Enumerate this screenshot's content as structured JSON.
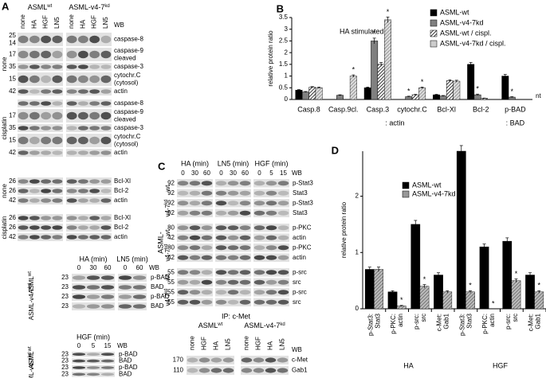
{
  "panel_a": {
    "label": "A",
    "groups": [
      {
        "text": "ASML",
        "sup": "wt"
      },
      {
        "text": "ASML-v4-7",
        "sup": "kd"
      }
    ],
    "lanes": [
      "none",
      "HA",
      "HGF",
      "LN5",
      "none",
      "HA",
      "HGF",
      "LN5"
    ],
    "wb": "WB",
    "sections": [
      {
        "label": "none",
        "rows": [
          {
            "mw": [
              25,
              14
            ],
            "name": [
              "caspase-8"
            ]
          },
          {
            "mw": [
              17
            ],
            "name": [
              "caspase-9",
              "cleaved"
            ]
          },
          {
            "mw": [
              35
            ],
            "name": [
              "caspase-3"
            ]
          },
          {
            "mw": [
              15
            ],
            "name": [
              "cytochr.C",
              "(cytosol)"
            ]
          },
          {
            "mw": [
              42
            ],
            "name": [
              "actin"
            ]
          }
        ]
      },
      {
        "label": "cisplatin",
        "rows": [
          {
            "mw": [],
            "name": [
              "caspase-8"
            ]
          },
          {
            "mw": [
              17
            ],
            "name": [
              "caspase-9",
              "cleaved"
            ]
          },
          {
            "mw": [
              35
            ],
            "name": [
              "caspase-3"
            ]
          },
          {
            "mw": [
              15
            ],
            "name": [
              "cytochr.C",
              "(cytosol)"
            ]
          },
          {
            "mw": [
              42
            ],
            "name": [
              "actin"
            ]
          }
        ]
      },
      {
        "label": "none",
        "rows": [
          {
            "mw": [
              26
            ],
            "name": [
              "Bcl-Xl"
            ]
          },
          {
            "mw": [
              26
            ],
            "name": [
              "Bcl-2"
            ]
          },
          {
            "mw": [
              42
            ],
            "name": [
              "actin"
            ]
          }
        ]
      },
      {
        "label": "cisplatin",
        "rows": [
          {
            "mw": [
              26
            ],
            "name": [
              "Bcl-Xl"
            ]
          },
          {
            "mw": [
              26
            ],
            "name": [
              "Bcl-2"
            ]
          },
          {
            "mw": [
              42
            ],
            "name": [
              "actin"
            ]
          }
        ]
      }
    ],
    "bad_blots": [
      {
        "headers": [
          {
            "text": "HA (min)",
            "ticks": [
              0,
              30,
              60
            ]
          },
          {
            "text": "LN5 (min)",
            "ticks": [
              0,
              60
            ]
          }
        ],
        "wb": "WB",
        "sides": [
          {
            "text": "ASML",
            "sup": "wt"
          },
          {
            "text": "ASML-v4-7",
            "sup": "kd"
          }
        ],
        "rows": [
          {
            "mw": [
              23
            ],
            "name": [
              "p-BAD"
            ]
          },
          {
            "mw": [
              23
            ],
            "name": [
              "BAD"
            ]
          },
          {
            "mw": [
              23
            ],
            "name": [
              "p-BAD"
            ]
          },
          {
            "mw": [
              23
            ],
            "name": [
              "BAD"
            ]
          }
        ]
      },
      {
        "headers": [
          {
            "text": "HGF (min)",
            "ticks": [
              0,
              5,
              15
            ]
          }
        ],
        "wb": "WB",
        "sides": [
          {
            "text": "ASML",
            "sup": "wt"
          },
          {
            "text": "ASML-v4-7",
            "sup": "kd"
          }
        ],
        "rows": [
          {
            "mw": [
              23
            ],
            "name": [
              "p-BAD"
            ]
          },
          {
            "mw": [
              23
            ],
            "name": [
              "BAD"
            ]
          },
          {
            "mw": [
              23
            ],
            "name": [
              "p-BAD"
            ]
          },
          {
            "mw": [
              23
            ],
            "name": [
              "BAD"
            ]
          }
        ]
      }
    ]
  },
  "panel_c": {
    "label": "C",
    "headers": [
      {
        "text": "HA (min)",
        "ticks": [
          0,
          30,
          60
        ]
      },
      {
        "text": "LN5 (min)",
        "ticks": [
          0,
          30,
          60
        ]
      },
      {
        "text": "HGF (min)",
        "ticks": [
          0,
          5,
          15
        ]
      }
    ],
    "wb": "WB",
    "side_title": "ASML-",
    "sides": [
      "wt",
      {
        "text": "v4-7",
        "sup": "kd"
      }
    ],
    "rows": [
      {
        "mw": [
          92
        ],
        "name": [
          "p-Stat3"
        ]
      },
      {
        "mw": [
          92
        ],
        "name": [
          "Stat3"
        ]
      },
      {
        "mw": [
          92
        ],
        "name": [
          "p-Stat3"
        ]
      },
      {
        "mw": [
          92
        ],
        "name": [
          "Stat3"
        ]
      },
      {
        "mw": [
          80
        ],
        "name": [
          "p-PKC"
        ]
      },
      {
        "mw": [
          42
        ],
        "name": [
          "actin"
        ]
      },
      {
        "mw": [
          80
        ],
        "name": [
          "p-PKC"
        ]
      },
      {
        "mw": [
          42
        ],
        "name": [
          "actin"
        ]
      },
      {
        "mw": [
          55
        ],
        "name": [
          "p-src"
        ]
      },
      {
        "mw": [
          55
        ],
        "name": [
          "src"
        ]
      },
      {
        "mw": [
          55
        ],
        "name": [
          "p-src"
        ]
      },
      {
        "mw": [
          55
        ],
        "name": [
          "src"
        ]
      }
    ],
    "ip": {
      "title": "IP: c-Met",
      "groups": [
        {
          "text": "ASML",
          "sup": "wt"
        },
        {
          "text": "ASML-v4-7",
          "sup": "kd"
        }
      ],
      "lanes": [
        "none",
        "HGF",
        "HA",
        "LN5",
        "none",
        "HGF",
        "HA",
        "LN5"
      ],
      "wb": "WB",
      "rows": [
        {
          "mw": [
            170
          ],
          "name": [
            "c-Met"
          ]
        },
        {
          "mw": [
            110
          ],
          "name": [
            "Gab1"
          ]
        }
      ]
    }
  },
  "chart_data": [
    {
      "type": "bar",
      "panel": "B",
      "title": "HA stimulated",
      "y_label": "relative protein ratio",
      "categories": [
        "Casp.8",
        "Casp.9cl.",
        "Casp.3",
        "cytochr.C",
        "Bcl-Xl",
        "Bcl-2",
        "p-BAD"
      ],
      "groups": [
        ": actin",
        ": BAD"
      ],
      "annotation": "nt",
      "series": [
        {
          "name": "ASML-wt",
          "color": "#000000",
          "pattern": "solid",
          "values": [
            0.4,
            0,
            0.5,
            0,
            0.2,
            1.5,
            1.0
          ],
          "errors": [
            0.02,
            0,
            0.03,
            0,
            0.02,
            0.08,
            0.07
          ],
          "significance": [
            null,
            null,
            null,
            null,
            null,
            null,
            null
          ]
        },
        {
          "name": "ASML-v4-7kd",
          "color": "#808080",
          "pattern": "solid",
          "values": [
            0.32,
            0.18,
            2.5,
            0.12,
            0.15,
            0.2,
            0.1
          ],
          "errors": [
            0.02,
            0.02,
            0.12,
            0.02,
            0.02,
            0.03,
            0.02
          ],
          "significance": [
            null,
            null,
            "*",
            "*",
            null,
            "*",
            "*"
          ]
        },
        {
          "name": "ASML-wt / cispl.",
          "color": "#404040",
          "pattern": "hatch",
          "values": [
            0.52,
            0,
            1.5,
            0.2,
            0.8,
            0.05,
            null
          ],
          "errors": [
            0.03,
            0,
            0.08,
            0.02,
            0.04,
            0.01,
            null
          ],
          "significance": [
            null,
            null,
            null,
            null,
            null,
            null,
            null
          ]
        },
        {
          "name": "ASML-v4-7kd / cispl.",
          "color": "#cccccc",
          "pattern": "hatch",
          "values": [
            0.5,
            1.0,
            3.4,
            0.5,
            0.78,
            0,
            null
          ],
          "errors": [
            0.03,
            0.05,
            0.12,
            0.03,
            0.04,
            0,
            null
          ],
          "significance": [
            null,
            "*",
            "*",
            "*",
            null,
            null,
            null
          ]
        }
      ],
      "ylim": [
        0,
        3.5
      ],
      "yticks": [
        0,
        0.5,
        1,
        1.5,
        2,
        2.5,
        3,
        3.5
      ],
      "legend": "top-right"
    },
    {
      "type": "bar",
      "panel": "D",
      "y_label": "relative protein ratio",
      "categories": [
        [
          "p-Stat3:",
          "Stat3"
        ],
        [
          "p-PKC:",
          "actin"
        ],
        [
          "p-src:",
          "src"
        ],
        [
          "c-Met:",
          "Gab1"
        ],
        [
          "p-Stat3:",
          "Stat3"
        ],
        [
          "p-PKC:",
          "actin"
        ],
        [
          "p-src:",
          "src"
        ],
        [
          "c-Met:",
          "Gab1"
        ]
      ],
      "groups": [
        "HA",
        "HGF"
      ],
      "series": [
        {
          "name": "ASML-wt",
          "color": "#000000",
          "pattern": "solid",
          "values": [
            0.7,
            0.3,
            1.5,
            0.6,
            2.8,
            1.1,
            1.2,
            0.6
          ],
          "errors": [
            0.04,
            0.02,
            0.07,
            0.04,
            0.1,
            0.05,
            0.06,
            0.04
          ],
          "significance": [
            null,
            null,
            null,
            null,
            null,
            null,
            null,
            null
          ]
        },
        {
          "name": "ASML-v4-7kd",
          "color": "#999999",
          "pattern": "hatch",
          "values": [
            0.7,
            0.05,
            0.4,
            0.3,
            0.3,
            0,
            0.5,
            0.3
          ],
          "errors": [
            0.04,
            0.01,
            0.03,
            0.02,
            0.02,
            0,
            0.03,
            0.02
          ],
          "significance": [
            null,
            "*",
            "*",
            null,
            "*",
            "*",
            "*",
            "*"
          ]
        }
      ],
      "ylim": [
        0,
        2.8
      ],
      "yticks": [
        0,
        1,
        2
      ],
      "legend": "top-left"
    }
  ]
}
